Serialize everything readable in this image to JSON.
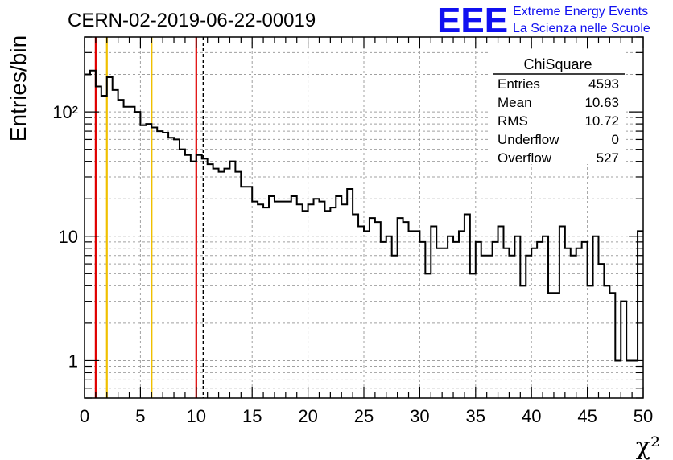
{
  "header": {
    "title": "CERN-02-2019-06-22-00019",
    "logo_text": "EEE",
    "logo_line1": "Extreme Energy Events",
    "logo_line2": "La Scienza nelle Scuole",
    "logo_color": "#1010f0"
  },
  "stats_box": {
    "title": "ChiSquare",
    "rows": [
      {
        "label": "Entries",
        "value": "4593"
      },
      {
        "label": "Mean",
        "value": "10.63"
      },
      {
        "label": "RMS",
        "value": "10.72"
      },
      {
        "label": "Underflow",
        "value": "0"
      },
      {
        "label": "Overflow",
        "value": "527"
      }
    ]
  },
  "chart_data": {
    "type": "histogram",
    "title": "CERN-02-2019-06-22-00019",
    "xlabel": "χ²",
    "ylabel": "Entries/bin",
    "xlim": [
      0,
      50
    ],
    "ylim": [
      0.5,
      400
    ],
    "yscale": "log",
    "grid": true,
    "bin_width": 0.5,
    "x_ticks": [
      "0",
      "5",
      "10",
      "15",
      "20",
      "25",
      "30",
      "35",
      "40",
      "45",
      "50"
    ],
    "y_ticks": [
      {
        "value": 1,
        "label": "1"
      },
      {
        "value": 10,
        "label": "10"
      },
      {
        "value": 100,
        "label": "10²"
      }
    ],
    "values": [
      200,
      215,
      160,
      135,
      190,
      150,
      125,
      110,
      110,
      100,
      78,
      80,
      75,
      70,
      68,
      62,
      60,
      50,
      45,
      40,
      45,
      42,
      38,
      35,
      33,
      35,
      40,
      33,
      25,
      25,
      19,
      18,
      17,
      21,
      19,
      19,
      19,
      21,
      18,
      16,
      18,
      20,
      19,
      16,
      17,
      21,
      18,
      24,
      15,
      12,
      11,
      14,
      13,
      9,
      10,
      7,
      14,
      13,
      11,
      11,
      9,
      5,
      12,
      8,
      8,
      10,
      9,
      11,
      15,
      5,
      9,
      7,
      7,
      9,
      12,
      8,
      7,
      10,
      4,
      7,
      8,
      9,
      10,
      3.5,
      3.5,
      12,
      8,
      7,
      8,
      9,
      4,
      10,
      6,
      4,
      3.5,
      1,
      3,
      1,
      1,
      11
    ],
    "vertical_lines": [
      {
        "x": 1,
        "color": "#e00000",
        "style": "solid"
      },
      {
        "x": 2,
        "color": "#f0c000",
        "style": "solid"
      },
      {
        "x": 6,
        "color": "#f0c000",
        "style": "solid"
      },
      {
        "x": 10,
        "color": "#e00000",
        "style": "solid"
      },
      {
        "x": 10.63,
        "color": "#000000",
        "style": "dashed"
      }
    ]
  }
}
